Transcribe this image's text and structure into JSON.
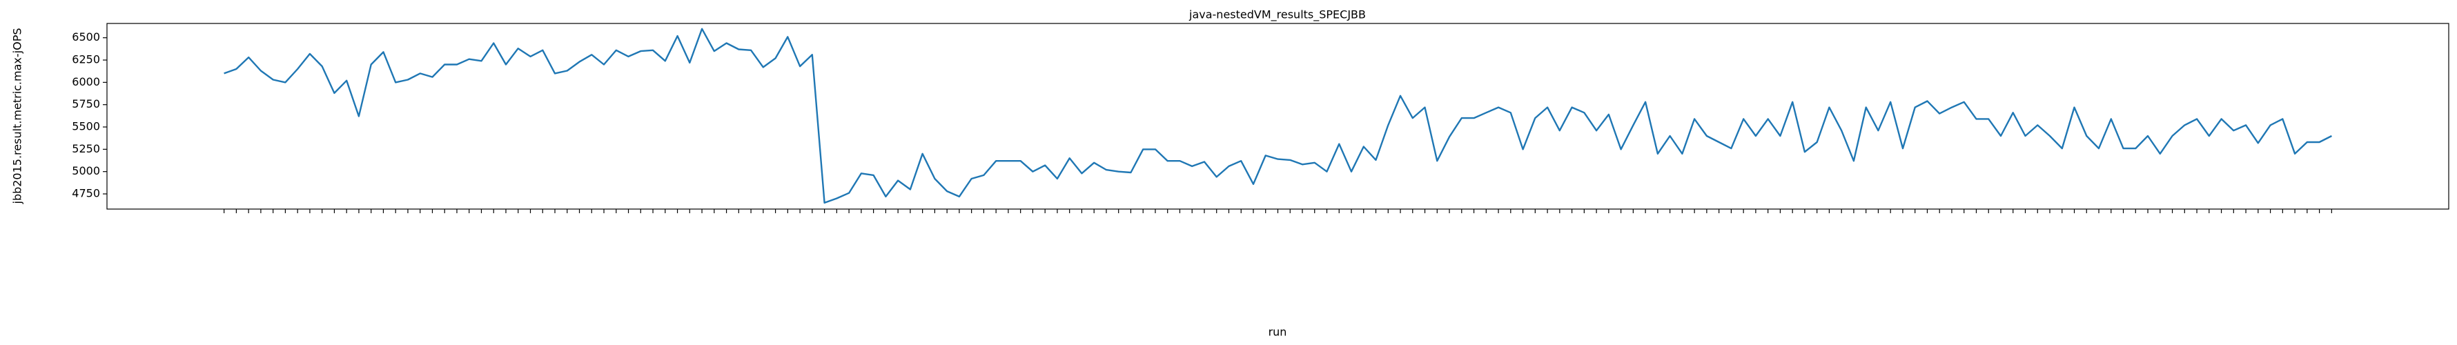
{
  "chart_data": {
    "type": "line",
    "title": "java-nestedVM_results_SPECJBB",
    "xlabel": "run",
    "ylabel": "jbb2015.result.metric.max-jOPS",
    "color": "#1f77b4",
    "categories": [
      null,
      null,
      null,
      null,
      null,
      null,
      null,
      null,
      null,
      null,
      null,
      null,
      null,
      null,
      null,
      null,
      null,
      null,
      null,
      null,
      null,
      null,
      null,
      null,
      null,
      null,
      null,
      null,
      null,
      null,
      null,
      null,
      null,
      null,
      null,
      null,
      null,
      null,
      null,
      null,
      null,
      null,
      null,
      null,
      null,
      null,
      null,
      null,
      null,
      null,
      null,
      null,
      null,
      null,
      null,
      null,
      null,
      null,
      null,
      null,
      null,
      null,
      null,
      null,
      null,
      null,
      null,
      null,
      null,
      null,
      null,
      null,
      null,
      null,
      null,
      null,
      null,
      null,
      null,
      null,
      null,
      null,
      null,
      null,
      null,
      null,
      null,
      null,
      null,
      null,
      null,
      null,
      null,
      null,
      null,
      null,
      null,
      null,
      null,
      null,
      null,
      null,
      null,
      null,
      null,
      null,
      null,
      null,
      null,
      null,
      null,
      null,
      null,
      null,
      null,
      null,
      null,
      null,
      null,
      null,
      null,
      null,
      null,
      null,
      null,
      null,
      null,
      null,
      null,
      null,
      null,
      null,
      null,
      null,
      null,
      null,
      null,
      null,
      null,
      null,
      null,
      null,
      null,
      null,
      null,
      null,
      null,
      null,
      null,
      null,
      null,
      null,
      null,
      null,
      null,
      null,
      null,
      null,
      null,
      null,
      null,
      null,
      null,
      null,
      null,
      null,
      null,
      null,
      null,
      null,
      null,
      null,
      null
    ],
    "values": [
      6100,
      6150,
      6280,
      6130,
      6030,
      6000,
      6150,
      6320,
      6180,
      5880,
      6020,
      5620,
      6200,
      6340,
      6000,
      6030,
      6100,
      6060,
      6200,
      6200,
      6260,
      6240,
      6440,
      6200,
      6380,
      6290,
      6360,
      6100,
      6130,
      6230,
      6310,
      6200,
      6360,
      6290,
      6350,
      6360,
      6240,
      6520,
      6220,
      6600,
      6350,
      6440,
      6370,
      6360,
      6170,
      6270,
      6510,
      6180,
      6310,
      4650,
      4700,
      4760,
      4980,
      4960,
      4720,
      4900,
      4800,
      5200,
      4920,
      4780,
      4720,
      4920,
      4960,
      5120,
      5120,
      5120,
      5000,
      5070,
      4920,
      5150,
      4980,
      5100,
      5020,
      5000,
      4990,
      5250,
      5250,
      5120,
      5120,
      5060,
      5110,
      4940,
      5060,
      5120,
      4860,
      5180,
      5140,
      5130,
      5080,
      5100,
      5000,
      5310,
      5000,
      5280,
      5130,
      5520,
      5850,
      5600,
      5720,
      5120,
      5390,
      5600,
      5600,
      5660,
      5720,
      5660,
      5250,
      5600,
      5720,
      5460,
      5720,
      5660,
      5460,
      5640,
      5250,
      5520,
      5780,
      5200,
      5400,
      5200,
      5590,
      5400,
      5330,
      5260,
      5590,
      5400,
      5590,
      5400,
      5780,
      5220,
      5330,
      5720,
      5460,
      5120,
      5720,
      5460,
      5780,
      5260,
      5720,
      5790,
      5650,
      5720,
      5780,
      5590,
      5590,
      5400,
      5660,
      5400,
      5520,
      5400,
      5260,
      5720,
      5400,
      5260,
      5590,
      5260,
      5260,
      5400,
      5200,
      5400,
      5520,
      5590,
      5400,
      5590,
      5460,
      5520,
      5320,
      5520,
      5590,
      5200,
      5330,
      5330,
      5400
    ],
    "ylim": [
      4580,
      6660
    ],
    "yticks": [
      4750,
      5000,
      5250,
      5500,
      5750,
      6000,
      6250,
      6500
    ]
  }
}
